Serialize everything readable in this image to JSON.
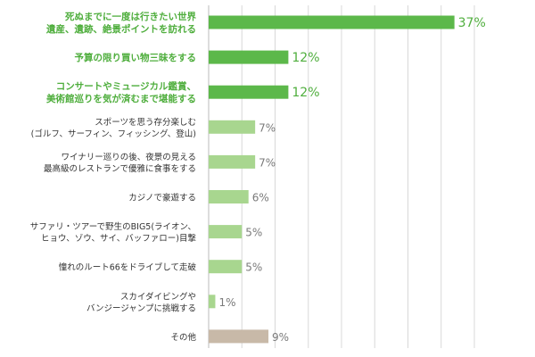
{
  "chart_data": {
    "type": "bar",
    "orientation": "horizontal",
    "categories": [
      [
        "死ぬまでに一度は行きたい世界",
        "遺産、遺跡、絶景ポイントを訪れる"
      ],
      [
        "予算の限り買い物三昧をする"
      ],
      [
        "コンサートやミュージカル鑑賞、",
        "美術館巡りを気が済むまで堪能する"
      ],
      [
        "スポーツを思う存分楽しむ",
        "(ゴルフ、サーフィン、フィッシング、登山)"
      ],
      [
        "ワイナリー巡りの後、夜景の見える",
        "最高級のレストランで優雅に食事をする"
      ],
      [
        "カジノで豪遊する"
      ],
      [
        "サファリ・ツアーで野生のBIG5(ライオン、",
        "ヒョウ、ゾウ、サイ、バッファロー)目撃"
      ],
      [
        "憧れのルート66をドライブして走破"
      ],
      [
        "スカイダイビングや",
        "バンジージャンプに挑戦する"
      ],
      [
        "その他"
      ]
    ],
    "values": [
      37,
      12,
      12,
      7,
      7,
      6,
      5,
      5,
      1,
      9
    ],
    "value_labels": [
      "37%",
      "12%",
      "12%",
      "7%",
      "7%",
      "6%",
      "5%",
      "5%",
      "1%",
      "9%"
    ],
    "highlight": [
      true,
      true,
      true,
      false,
      false,
      false,
      false,
      false,
      false,
      false
    ],
    "other_index": 9,
    "xlim": [
      0,
      40
    ],
    "grid": true,
    "colors": {
      "highlight": "#5cb84a",
      "normal": "#a8d68f",
      "other": "#c8b9a8",
      "grid": "#d8d8d8",
      "axis": "#bbbbbb",
      "highlight_text": "#4fae3d",
      "normal_text": "#333333",
      "value_text": "#7a7a7a"
    }
  }
}
